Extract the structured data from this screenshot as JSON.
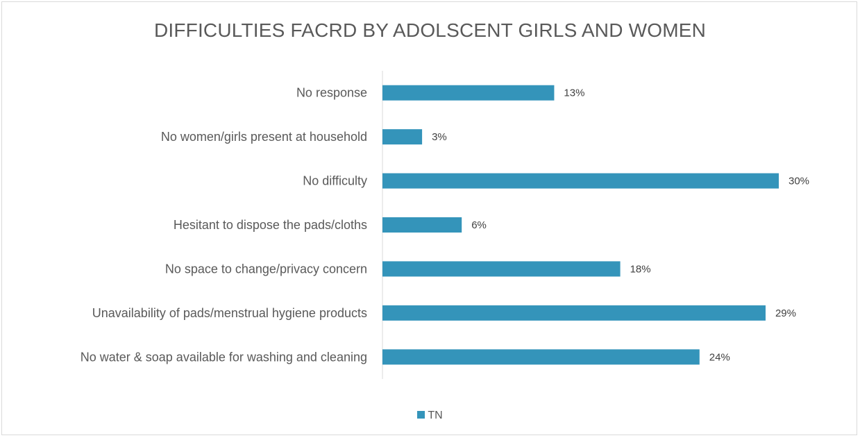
{
  "chart_data": {
    "type": "bar",
    "orientation": "horizontal",
    "title": "DIFFICULTIES FACRD BY ADOLSCENT GIRLS AND WOMEN",
    "categories": [
      "No response",
      "No women/girls present at household",
      "No difficulty",
      "Hesitant to dispose the pads/cloths",
      "No space to change/privacy concern",
      "Unavailability of pads/menstrual hygiene products",
      "No water & soap available for washing and cleaning"
    ],
    "series": [
      {
        "name": "TN",
        "color": "#3494ba",
        "values": [
          13,
          3,
          30,
          6,
          18,
          29,
          24
        ],
        "labels": [
          "13%",
          "3%",
          "30%",
          "6%",
          "18%",
          "29%",
          "24%"
        ]
      }
    ],
    "xlim": [
      0,
      30
    ],
    "value_unit": "%",
    "grid": false,
    "legend_position": "bottom"
  }
}
